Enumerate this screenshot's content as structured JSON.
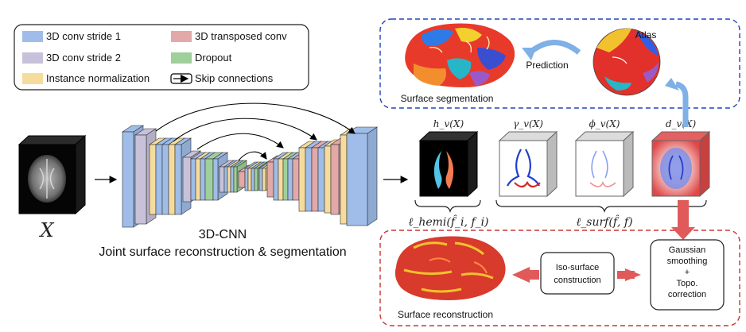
{
  "legend": {
    "items": [
      {
        "key": "conv1",
        "label": "3D conv stride 1",
        "color": "#9fbde8"
      },
      {
        "key": "tconv",
        "label": "3D transposed conv",
        "color": "#e3a8a8"
      },
      {
        "key": "conv2",
        "label": "3D conv stride 2",
        "color": "#c8c1da"
      },
      {
        "key": "dropout",
        "label": "Dropout",
        "color": "#9fcf9a"
      },
      {
        "key": "norm",
        "label": "Instance normalization",
        "color": "#f6dc9c"
      },
      {
        "key": "skip",
        "label": "Skip connections",
        "color": "#000000"
      }
    ]
  },
  "input": {
    "label": "X"
  },
  "network": {
    "title": "3D-CNN",
    "subtitle": "Joint surface reconstruction & segmentation"
  },
  "outputs": {
    "h": "h_v(X)",
    "gamma": "γ_v(X)",
    "phi": "ϕ_v(X)",
    "d": "d_v(X)",
    "loss_hemi": "ℓ_hemi(f̂_i, f_i)",
    "loss_surf": "ℓ_surf(f̂, f)"
  },
  "segmentation_panel": {
    "caption": "Surface segmentation",
    "atlas": "Atlas",
    "prediction": "Prediction",
    "border_color": "#2244bb"
  },
  "reconstruction_panel": {
    "caption": "Surface reconstruction",
    "iso_surface": "Iso-surface construction",
    "smoothing": "Gaussian smoothing + Topo. correction",
    "border_color": "#cc3333"
  },
  "colors": {
    "arrow_blue": "#7fb0e6",
    "arrow_red": "#e05a5a",
    "cortex_red": "#d83a2c",
    "cortex_yellow": "#f2c12e"
  }
}
